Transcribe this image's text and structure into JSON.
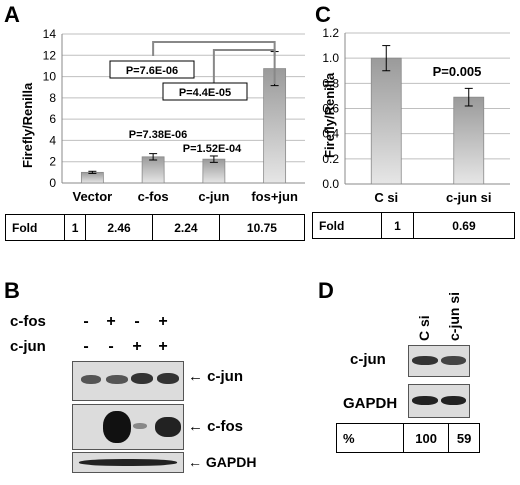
{
  "panels": {
    "a": "A",
    "b": "B",
    "c": "C",
    "d": "D"
  },
  "chart_data": [
    {
      "type": "bar",
      "ylabel": "Firefly/Renilla",
      "xlabel": "",
      "ylim": [
        0,
        14
      ],
      "yticks": [
        "0",
        "2",
        "4",
        "6",
        "8",
        "10",
        "12",
        "14"
      ],
      "grid": true,
      "categories": [
        "Vector",
        "c-fos",
        "c-jun",
        "fos+jun"
      ],
      "values": [
        1.0,
        2.46,
        2.24,
        10.75
      ],
      "errors": [
        0.1,
        0.3,
        0.3,
        1.6
      ],
      "annotations": [
        "P=7.6E-06",
        "P=4.4E-05",
        "P=7.38E-06",
        "P=1.52E-04"
      ],
      "table": {
        "label": "Fold",
        "values": [
          "1",
          "2.46",
          "2.24",
          "10.75"
        ]
      }
    },
    {
      "type": "bar",
      "ylabel": "Firefly/Renilla",
      "xlabel": "",
      "ylim": [
        0,
        1.2
      ],
      "yticks": [
        "0.0",
        "0.2",
        "0.4",
        "0.6",
        "0.8",
        "1.0",
        "1.2"
      ],
      "grid": true,
      "categories": [
        "C si",
        "c-jun si"
      ],
      "values": [
        1.0,
        0.69
      ],
      "errors": [
        0.1,
        0.07
      ],
      "annotations": [
        "P=0.005"
      ],
      "table": {
        "label": "Fold",
        "values": [
          "1",
          "0.69"
        ]
      }
    }
  ],
  "blot_b": {
    "rows": [
      {
        "label": "c-fos",
        "signs": [
          "-",
          "+",
          "-",
          "+"
        ]
      },
      {
        "label": "c-jun",
        "signs": [
          "-",
          "-",
          "+",
          "+"
        ]
      }
    ],
    "bands": [
      "c-jun",
      "c-fos",
      "GAPDH"
    ],
    "arrow": "←"
  },
  "blot_d": {
    "lanes": [
      "C si",
      "c-jun si"
    ],
    "bands": [
      "c-jun",
      "GAPDH"
    ],
    "table": {
      "label": "%",
      "values": [
        "100",
        "59"
      ]
    }
  }
}
